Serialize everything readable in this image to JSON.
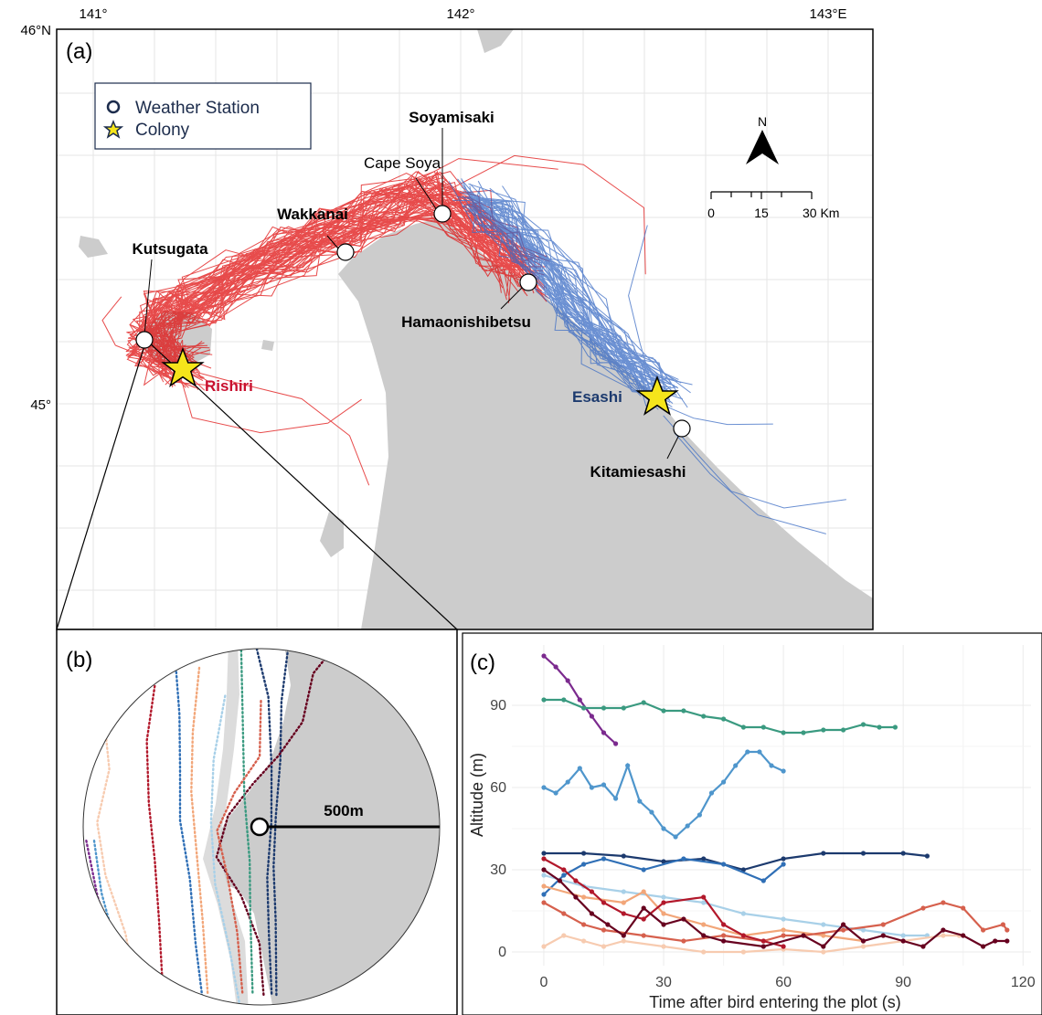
{
  "panel_a": {
    "label": "(a)",
    "lon_ticks": [
      "141°",
      "142°",
      "143°E"
    ],
    "lat_ticks": [
      "46°N",
      "45°"
    ],
    "legend": {
      "weather_station": "Weather Station",
      "colony": "Colony"
    },
    "stations": {
      "soyamisaki": "Soyamisaki",
      "cape_soya": "Cape Soya",
      "wakkanai": "Wakkanai",
      "kutsugata": "Kutsugata",
      "hamaonishibetsu": "Hamaonishibetsu",
      "kitamiesashi": "Kitamiesashi"
    },
    "colonies": {
      "rishiri": "Rishiri",
      "esashi": "Esashi"
    },
    "north_arrow": "N",
    "scale": {
      "t0": "0",
      "t1": "15",
      "t2": "30 Km"
    },
    "colors": {
      "rishiri_tracks": "#e01010",
      "esashi_tracks": "#3a6bc4",
      "land": "#cccccc",
      "star": "#f5e51b"
    }
  },
  "panel_b": {
    "label": "(b)",
    "radius_label": "500m"
  },
  "panel_c": {
    "label": "(c)",
    "chart_data": {
      "type": "line",
      "xlabel": "Time after bird entering the plot (s)",
      "ylabel": "Altitude (m)",
      "xlim": [
        -8,
        122
      ],
      "ylim": [
        -5,
        112
      ],
      "x_ticks": [
        0,
        30,
        60,
        90,
        120
      ],
      "y_ticks": [
        0,
        30,
        60,
        90
      ],
      "grid": true,
      "series": [
        {
          "color": "#7b2a8e",
          "points": [
            [
              0,
              108
            ],
            [
              3,
              104
            ],
            [
              6,
              99
            ],
            [
              9,
              92
            ],
            [
              12,
              86
            ],
            [
              15,
              80
            ],
            [
              18,
              76
            ]
          ]
        },
        {
          "color": "#3a9a80",
          "points": [
            [
              0,
              92
            ],
            [
              5,
              92
            ],
            [
              10,
              89
            ],
            [
              15,
              89
            ],
            [
              20,
              89
            ],
            [
              25,
              91
            ],
            [
              30,
              88
            ],
            [
              35,
              88
            ],
            [
              40,
              86
            ],
            [
              45,
              85
            ],
            [
              50,
              82
            ],
            [
              55,
              82
            ],
            [
              60,
              80
            ],
            [
              65,
              80
            ],
            [
              70,
              81
            ],
            [
              75,
              81
            ],
            [
              80,
              83
            ],
            [
              84,
              82
            ],
            [
              88,
              82
            ]
          ]
        },
        {
          "color": "#4f96cc",
          "points": [
            [
              0,
              60
            ],
            [
              3,
              58
            ],
            [
              6,
              62
            ],
            [
              9,
              67
            ],
            [
              12,
              60
            ],
            [
              15,
              61
            ],
            [
              18,
              56
            ],
            [
              21,
              68
            ],
            [
              24,
              55
            ],
            [
              27,
              51
            ],
            [
              30,
              45
            ],
            [
              33,
              42
            ],
            [
              36,
              46
            ],
            [
              39,
              50
            ],
            [
              42,
              58
            ],
            [
              45,
              62
            ],
            [
              48,
              68
            ],
            [
              51,
              73
            ],
            [
              54,
              73
            ],
            [
              57,
              68
            ],
            [
              60,
              66
            ]
          ]
        },
        {
          "color": "#1c3a6e",
          "points": [
            [
              0,
              36
            ],
            [
              10,
              36
            ],
            [
              20,
              35
            ],
            [
              30,
              33
            ],
            [
              40,
              34
            ],
            [
              50,
              30
            ],
            [
              60,
              34
            ],
            [
              70,
              36
            ],
            [
              80,
              36
            ],
            [
              90,
              36
            ],
            [
              96,
              35
            ]
          ]
        },
        {
          "color": "#2f6fb6",
          "points": [
            [
              0,
              21
            ],
            [
              5,
              28
            ],
            [
              10,
              32
            ],
            [
              15,
              34
            ],
            [
              25,
              30
            ],
            [
              35,
              34
            ],
            [
              45,
              32
            ],
            [
              55,
              26
            ],
            [
              60,
              32
            ]
          ]
        },
        {
          "color": "#a8d0e8",
          "points": [
            [
              0,
              28
            ],
            [
              10,
              24
            ],
            [
              20,
              22
            ],
            [
              30,
              20
            ],
            [
              40,
              18
            ],
            [
              50,
              14
            ],
            [
              60,
              12
            ],
            [
              70,
              10
            ],
            [
              80,
              8
            ],
            [
              90,
              6
            ],
            [
              96,
              6
            ]
          ]
        },
        {
          "color": "#f2a679",
          "points": [
            [
              0,
              24
            ],
            [
              10,
              20
            ],
            [
              20,
              18
            ],
            [
              25,
              22
            ],
            [
              30,
              14
            ],
            [
              40,
              10
            ],
            [
              50,
              6
            ],
            [
              60,
              8
            ],
            [
              70,
              6
            ],
            [
              80,
              4
            ]
          ]
        },
        {
          "color": "#f7cbb0",
          "points": [
            [
              0,
              2
            ],
            [
              5,
              6
            ],
            [
              10,
              4
            ],
            [
              15,
              2
            ],
            [
              20,
              4
            ],
            [
              30,
              2
            ],
            [
              40,
              0
            ],
            [
              50,
              0
            ],
            [
              60,
              1
            ],
            [
              70,
              0
            ],
            [
              80,
              2
            ],
            [
              90,
              4
            ],
            [
              100,
              6
            ],
            [
              104,
              6
            ]
          ]
        },
        {
          "color": "#d6604d",
          "points": [
            [
              0,
              18
            ],
            [
              5,
              14
            ],
            [
              10,
              10
            ],
            [
              15,
              8
            ],
            [
              25,
              6
            ],
            [
              35,
              4
            ],
            [
              45,
              6
            ],
            [
              55,
              4
            ],
            [
              60,
              6
            ],
            [
              65,
              6
            ],
            [
              75,
              8
            ],
            [
              85,
              10
            ],
            [
              95,
              16
            ],
            [
              100,
              18
            ],
            [
              105,
              16
            ],
            [
              110,
              8
            ],
            [
              115,
              10
            ],
            [
              116,
              8
            ]
          ]
        },
        {
          "color": "#b2182b",
          "points": [
            [
              0,
              34
            ],
            [
              5,
              30
            ],
            [
              8,
              26
            ],
            [
              12,
              22
            ],
            [
              15,
              18
            ],
            [
              20,
              14
            ],
            [
              25,
              12
            ],
            [
              30,
              18
            ],
            [
              40,
              20
            ],
            [
              45,
              10
            ],
            [
              50,
              6
            ],
            [
              55,
              4
            ],
            [
              60,
              2
            ]
          ]
        },
        {
          "color": "#67001f",
          "points": [
            [
              0,
              30
            ],
            [
              4,
              26
            ],
            [
              8,
              20
            ],
            [
              12,
              14
            ],
            [
              16,
              10
            ],
            [
              20,
              6
            ],
            [
              25,
              16
            ],
            [
              30,
              10
            ],
            [
              35,
              12
            ],
            [
              40,
              6
            ],
            [
              45,
              4
            ],
            [
              55,
              2
            ],
            [
              65,
              6
            ],
            [
              70,
              2
            ],
            [
              75,
              10
            ],
            [
              80,
              4
            ],
            [
              85,
              6
            ],
            [
              90,
              4
            ],
            [
              95,
              2
            ],
            [
              100,
              8
            ],
            [
              105,
              6
            ],
            [
              110,
              2
            ],
            [
              113,
              4
            ],
            [
              116,
              4
            ]
          ]
        }
      ]
    }
  }
}
